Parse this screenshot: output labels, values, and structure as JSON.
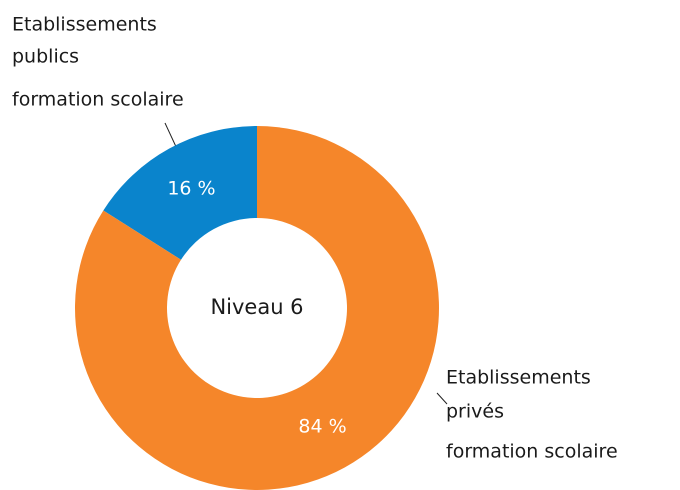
{
  "chart_data": {
    "type": "pie",
    "center_label": "Niveau 6",
    "categories": [
      [
        "Etablissements",
        "publics",
        "formation scolaire"
      ],
      [
        "Etablissements",
        "privés",
        "formation scolaire"
      ]
    ],
    "values": [
      16,
      84
    ],
    "value_labels": [
      "16 %",
      "84 %"
    ],
    "colors": [
      "#0a84cc",
      "#f5862a"
    ],
    "donut": true
  }
}
